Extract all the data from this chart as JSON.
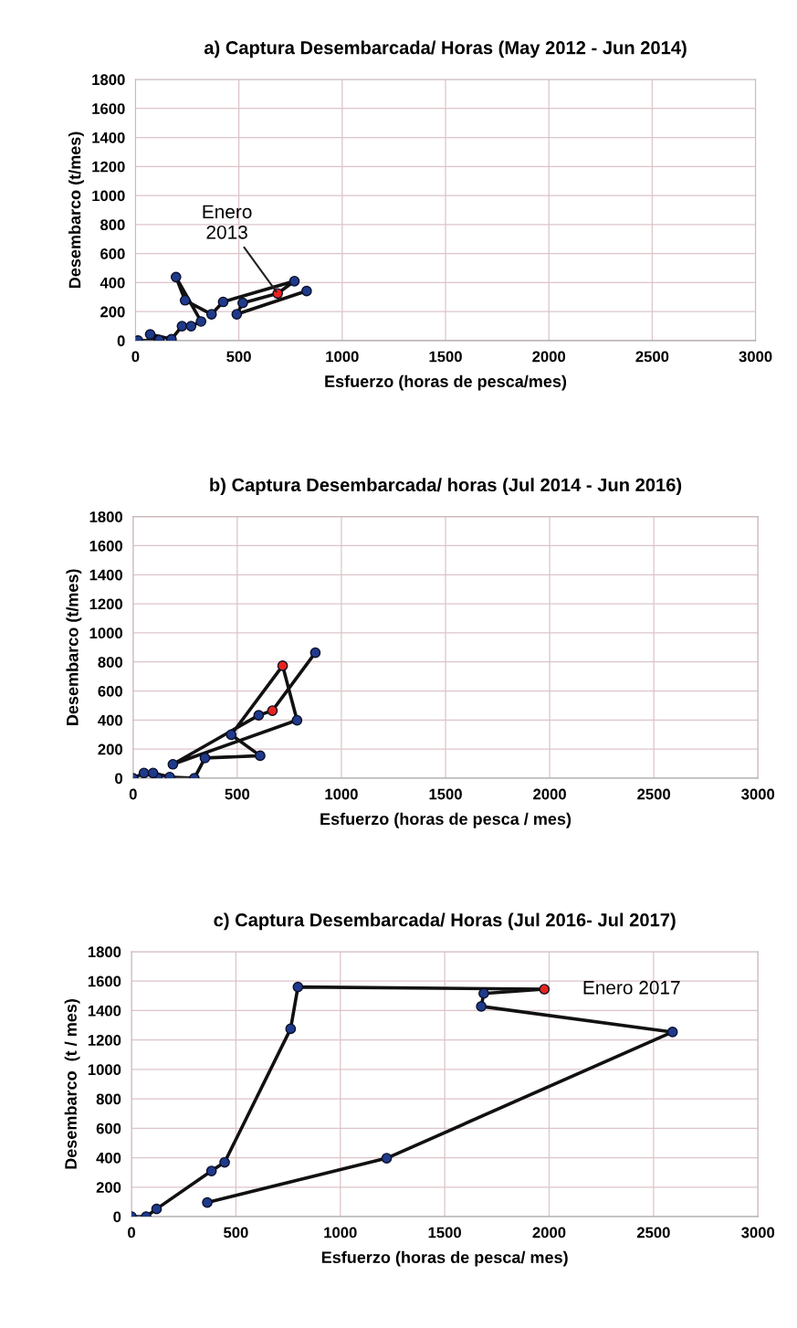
{
  "chart_data": [
    {
      "type": "line",
      "title": "a) Captura Desembarcada/ Horas (May 2012 - Jun 2014)",
      "xlabel": "Esfuerzo (horas de pesca/mes)",
      "ylabel": "Desembarco (t/mes)",
      "xlim": [
        0,
        3000
      ],
      "xticks": [
        0,
        500,
        1000,
        1500,
        2000,
        2500,
        3000
      ],
      "ylim": [
        0,
        1800
      ],
      "yticks": [
        0,
        200,
        400,
        600,
        800,
        1000,
        1200,
        1400,
        1600,
        1800
      ],
      "grid": true,
      "marker": "circle",
      "line_style": "solid",
      "series": [
        {
          "color": "#111111",
          "x": [
            12,
            115,
            71,
            174,
            225,
            269,
            317,
            196,
            240,
            368,
            424,
            769,
            688,
            519,
            490,
            828
          ],
          "values": [
            0,
            4,
            43,
            10,
            100,
            100,
            132,
            438,
            278,
            182,
            267,
            410,
            325,
            260,
            182,
            342
          ],
          "colors": [
            "#1f3a8a",
            "#1f3a8a",
            "#1f3a8a",
            "#1f3a8a",
            "#1f3a8a",
            "#1f3a8a",
            "#1f3a8a",
            "#1f3a8a",
            "#1f3a8a",
            "#1f3a8a",
            "#1f3a8a",
            "#1f3a8a",
            "#e8231d",
            "#1f3a8a",
            "#1f3a8a",
            "#1f3a8a"
          ]
        }
      ],
      "annotations": [
        {
          "text": "Enero\n2013",
          "x": 688,
          "y": 325
        }
      ]
    },
    {
      "type": "line",
      "title": "b) Captura Desembarcada/ horas (Jul 2014 - Jun 2016)",
      "xlabel": "Esfuerzo (horas de pesca / mes)",
      "ylabel": "Desembarco (t/mes)",
      "xlim": [
        0,
        3000
      ],
      "xticks": [
        0,
        500,
        1000,
        1500,
        2000,
        2500,
        3000
      ],
      "ylim": [
        0,
        1800
      ],
      "yticks": [
        0,
        200,
        400,
        600,
        800,
        1000,
        1200,
        1400,
        1600,
        1800
      ],
      "grid": true,
      "marker": "circle",
      "line_style": "solid",
      "series": [
        {
          "color": "#111111",
          "x": [
            0,
            52,
            118,
            96,
            176,
            294,
            345,
            610,
            471,
            718,
            787,
            191,
            603,
            669,
            875
          ],
          "values": [
            0,
            36,
            0,
            36,
            8,
            0,
            139,
            155,
            299,
            774,
            399,
            96,
            433,
            465,
            864
          ],
          "colors": [
            "#1f3a8a",
            "#1f3a8a",
            "#1f3a8a",
            "#1f3a8a",
            "#1f3a8a",
            "#1f3a8a",
            "#1f3a8a",
            "#1f3a8a",
            "#1f3a8a",
            "#e8231d",
            "#1f3a8a",
            "#1f3a8a",
            "#1f3a8a",
            "#e8231d",
            "#1f3a8a"
          ]
        }
      ]
    },
    {
      "type": "line",
      "title": "c) Captura Desembarcada/ Horas (Jul 2016- Jul 2017)",
      "xlabel": "Esfuerzo (horas de pesca/ mes)",
      "ylabel": "Desembarco  (t / mes)",
      "xlim": [
        0,
        3000
      ],
      "xticks": [
        0,
        500,
        1000,
        1500,
        2000,
        2500,
        3000
      ],
      "ylim": [
        0,
        1800
      ],
      "yticks": [
        0,
        200,
        400,
        600,
        800,
        1000,
        1200,
        1400,
        1600,
        1800
      ],
      "grid": true,
      "marker": "circle",
      "line_style": "solid",
      "series": [
        {
          "color": "#111111",
          "x": [
            0,
            70,
            120,
            383,
            446,
            762,
            797,
            1977,
            1687,
            1675,
            2591,
            1222,
            363
          ],
          "values": [
            0,
            0,
            52,
            310,
            369,
            1276,
            1560,
            1545,
            1516,
            1428,
            1254,
            397,
            96
          ],
          "colors": [
            "#1f3a8a",
            "#1f3a8a",
            "#1f3a8a",
            "#1f3a8a",
            "#1f3a8a",
            "#1f3a8a",
            "#1f3a8a",
            "#e8231d",
            "#1f3a8a",
            "#1f3a8a",
            "#1f3a8a",
            "#1f3a8a",
            "#1f3a8a"
          ]
        }
      ],
      "annotations": [
        {
          "text": "Enero 2017",
          "x": 1977,
          "y": 1545
        }
      ]
    }
  ]
}
